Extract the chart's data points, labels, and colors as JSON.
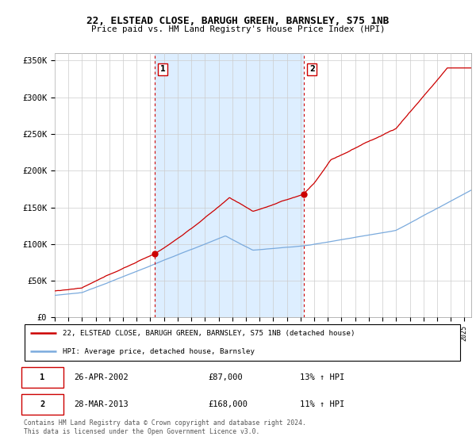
{
  "title": "22, ELSTEAD CLOSE, BARUGH GREEN, BARNSLEY, S75 1NB",
  "subtitle": "Price paid vs. HM Land Registry's House Price Index (HPI)",
  "ylim": [
    0,
    360000
  ],
  "yticks": [
    0,
    50000,
    100000,
    150000,
    200000,
    250000,
    300000,
    350000
  ],
  "ytick_labels": [
    "£0",
    "£50K",
    "£100K",
    "£150K",
    "£200K",
    "£250K",
    "£300K",
    "£350K"
  ],
  "line_color_red": "#cc0000",
  "line_color_blue": "#7aaadd",
  "vline_color": "#cc0000",
  "shade_color": "#ddeeff",
  "transaction1_year": 2002.32,
  "transaction1_label": "1",
  "transaction1_price": 87000,
  "transaction2_year": 2013.24,
  "transaction2_label": "2",
  "transaction2_price": 168000,
  "legend_red_label": "22, ELSTEAD CLOSE, BARUGH GREEN, BARNSLEY, S75 1NB (detached house)",
  "legend_blue_label": "HPI: Average price, detached house, Barnsley",
  "table_row1": [
    "1",
    "26-APR-2002",
    "£87,000",
    "13% ↑ HPI"
  ],
  "table_row2": [
    "2",
    "28-MAR-2013",
    "£168,000",
    "11% ↑ HPI"
  ],
  "footnote": "Contains HM Land Registry data © Crown copyright and database right 2024.\nThis data is licensed under the Open Government Licence v3.0.",
  "background_color": "#ffffff",
  "grid_color": "#cccccc",
  "xlim_start": 1995.0,
  "xlim_end": 2025.5
}
